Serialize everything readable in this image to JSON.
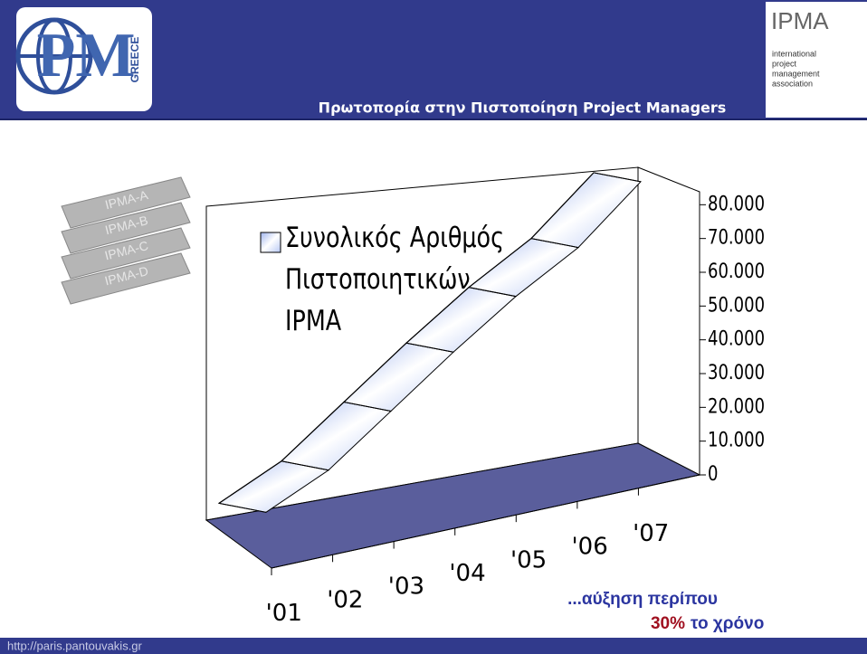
{
  "header": {
    "title": "Πρωτοπορία στην Πιστοποίηση Project Managers",
    "logo_left": "GREECE",
    "logo_right": {
      "name": "IPMA",
      "lines": [
        "international",
        "project",
        "management",
        "association"
      ]
    }
  },
  "bricks": [
    "IPMA-A",
    "IPMA-B",
    "IPMA-C",
    "IPMA-D"
  ],
  "chart_data": {
    "type": "ribbon",
    "categories": [
      "'01",
      "'02",
      "'03",
      "'04",
      "'05",
      "'06",
      "'07"
    ],
    "series": [
      {
        "name": "Συνολικός Αριθμός Πιστοποιητικών IPMA",
        "color": "#c9d6f7",
        "values": [
          5000,
          14000,
          28000,
          42000,
          55000,
          66000,
          82000
        ]
      }
    ],
    "ylim": [
      0,
      90000
    ],
    "yticks": [
      0,
      {
        "value": 10000,
        "label": "10.000"
      },
      {
        "value": 20000,
        "label": "20.000"
      },
      {
        "value": 30000,
        "label": "30.000"
      },
      {
        "value": 40000,
        "label": "40.000"
      },
      {
        "value": 50000,
        "label": "50.000"
      },
      {
        "value": 60000,
        "label": "60.000"
      },
      {
        "value": 70000,
        "label": "70.000"
      },
      {
        "value": 80000,
        "label": "80.000"
      }
    ]
  },
  "note": {
    "line1": "...αύξηση περίπου",
    "highlight": "30%",
    "line2": "το χρόνο"
  },
  "footer": "http://paris.pantouvakis.gr"
}
